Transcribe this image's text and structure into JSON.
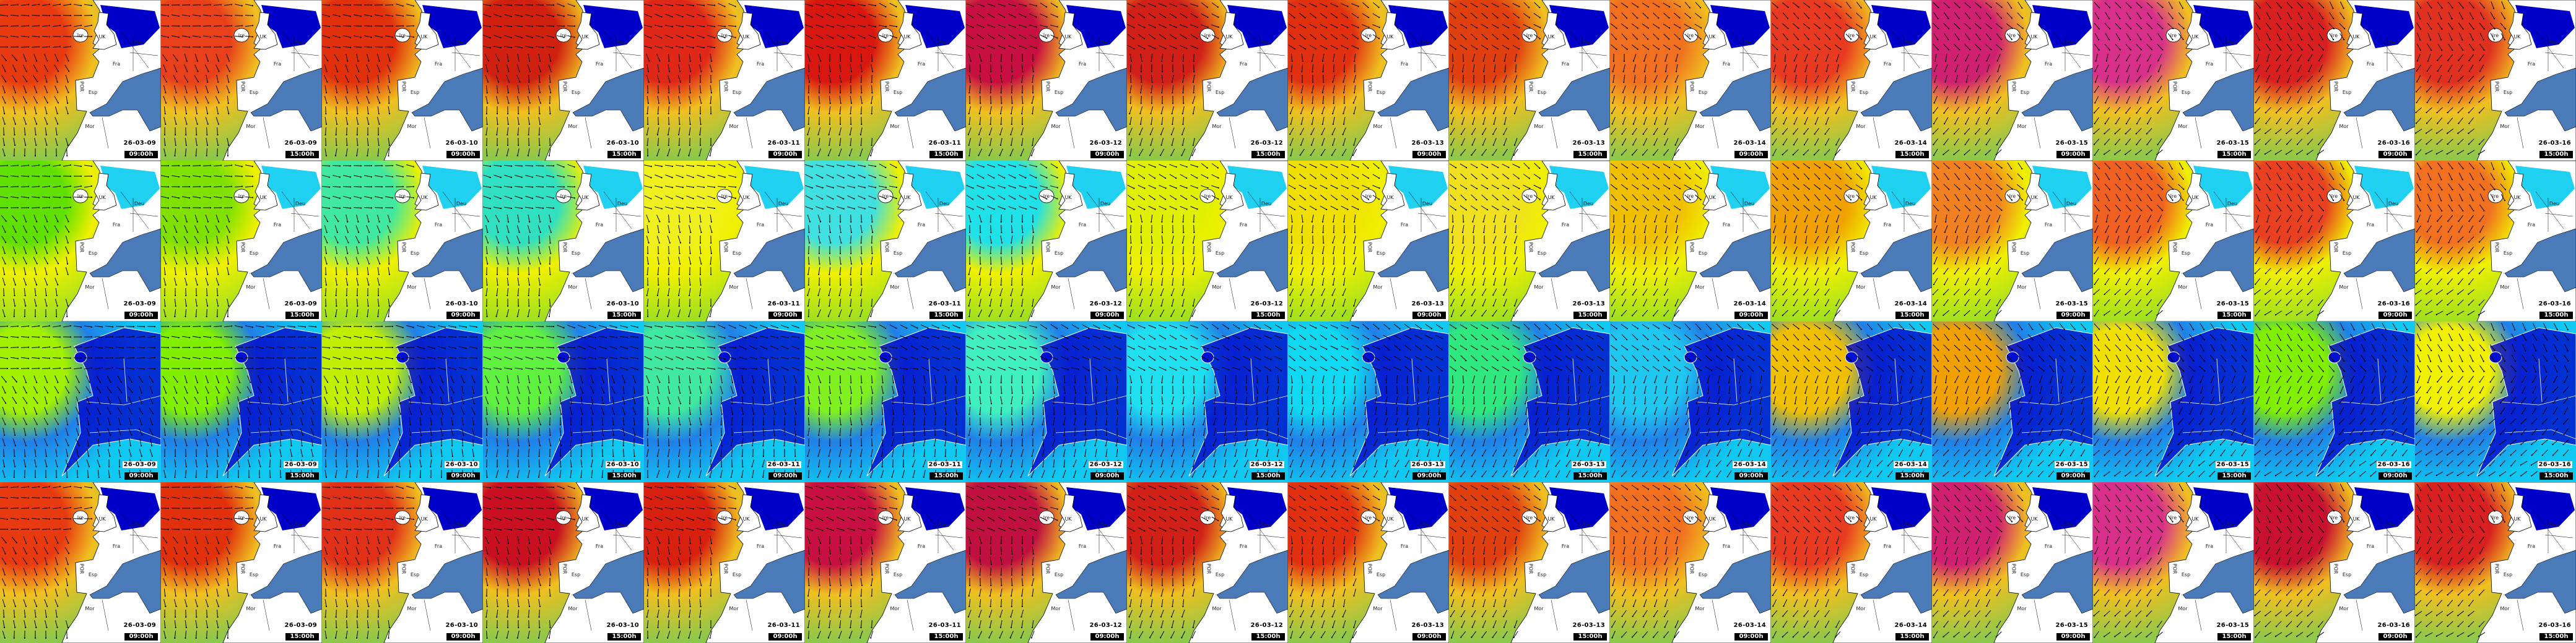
{
  "country_labels": [
    "Ire",
    "UK",
    "Deu",
    "Fra",
    "Esp",
    "POR",
    "Mor"
  ],
  "columns": [
    {
      "date": "26-03-09",
      "time": "09:00h"
    },
    {
      "date": "26-03-09",
      "time": "15:00h"
    },
    {
      "date": "26-03-10",
      "time": "09:00h"
    },
    {
      "date": "26-03-10",
      "time": "15:00h"
    },
    {
      "date": "26-03-11",
      "time": "09:00h"
    },
    {
      "date": "26-03-11",
      "time": "15:00h"
    },
    {
      "date": "26-03-12",
      "time": "09:00h"
    },
    {
      "date": "26-03-12",
      "time": "15:00h"
    },
    {
      "date": "26-03-13",
      "time": "09:00h"
    },
    {
      "date": "26-03-13",
      "time": "15:00h"
    },
    {
      "date": "26-03-14",
      "time": "09:00h"
    },
    {
      "date": "26-03-14",
      "time": "15:00h"
    },
    {
      "date": "26-03-15",
      "time": "09:00h"
    },
    {
      "date": "26-03-15",
      "time": "15:00h"
    },
    {
      "date": "26-03-16",
      "time": "09:00h"
    },
    {
      "date": "26-03-16",
      "time": "15:00h"
    }
  ],
  "rows": [
    {
      "style": "regional",
      "base": "#8cc84b",
      "mid": "#f0c020",
      "blobs": [
        "#e83a10",
        "#e8401a",
        "#e0300c",
        "#d02010",
        "#e02818",
        "#d81810",
        "#c81040",
        "#d02018",
        "#e03010",
        "#e04010",
        "#f07020",
        "#e83a20",
        "#d02070",
        "#d8308a",
        "#d82020",
        "#e03020"
      ],
      "sea": "#4a7ab8",
      "inner": "#0000c8"
    },
    {
      "style": "regional",
      "base": "#a0e020",
      "mid": "#f0f000",
      "blobs": [
        "#60e000",
        "#80e000",
        "#40e8a0",
        "#30e0c0",
        "#f0f020",
        "#40e0e0",
        "#20e0e8",
        "#e0f000",
        "#f0e000",
        "#f0e020",
        "#f0c000",
        "#f0a000",
        "#f08020",
        "#f06020",
        "#e84020",
        "#f07020"
      ],
      "sea": "#4a7ab8",
      "inner": "#20d0f0"
    },
    {
      "style": "wide",
      "base": "#10c8f0",
      "mid": "#2080e8",
      "blobs": [
        "#a0f000",
        "#80f000",
        "#c0f000",
        "#60f040",
        "#40e8a0",
        "#80f020",
        "#40f0c0",
        "#20e0f0",
        "#10d8f0",
        "#30e880",
        "#20c8f0",
        "#f0c000",
        "#f0a000",
        "#f0e000",
        "#80f000",
        "#f0f000"
      ],
      "sea": "#0000c8",
      "inner": "#0010d0"
    },
    {
      "style": "regional",
      "base": "#8cc84b",
      "mid": "#f0c020",
      "blobs": [
        "#e83a10",
        "#e0300c",
        "#e03018",
        "#c81020",
        "#d82010",
        "#c81040",
        "#c01040",
        "#d02018",
        "#e03010",
        "#e04010",
        "#f07020",
        "#e83a20",
        "#d02070",
        "#d8308a",
        "#c81030",
        "#d82020"
      ],
      "sea": "#4a7ab8",
      "inner": "#0000c8"
    }
  ]
}
